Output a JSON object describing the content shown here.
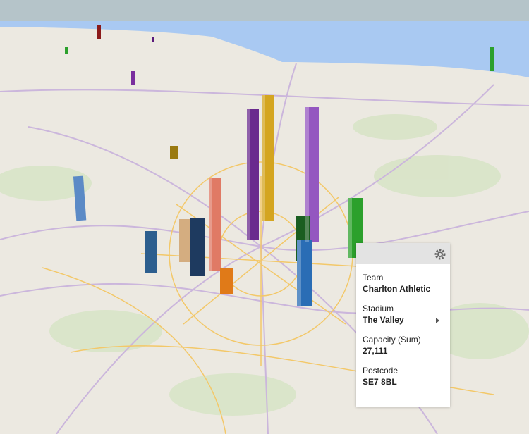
{
  "tooltip": {
    "fields": [
      {
        "label": "Team",
        "value": "Charlton Athletic"
      },
      {
        "label": "Stadium",
        "value": "The Valley"
      },
      {
        "label": "Capacity (Sum)",
        "value": "27,111"
      },
      {
        "label": "Postcode",
        "value": "SE7 8BL"
      }
    ]
  }
}
